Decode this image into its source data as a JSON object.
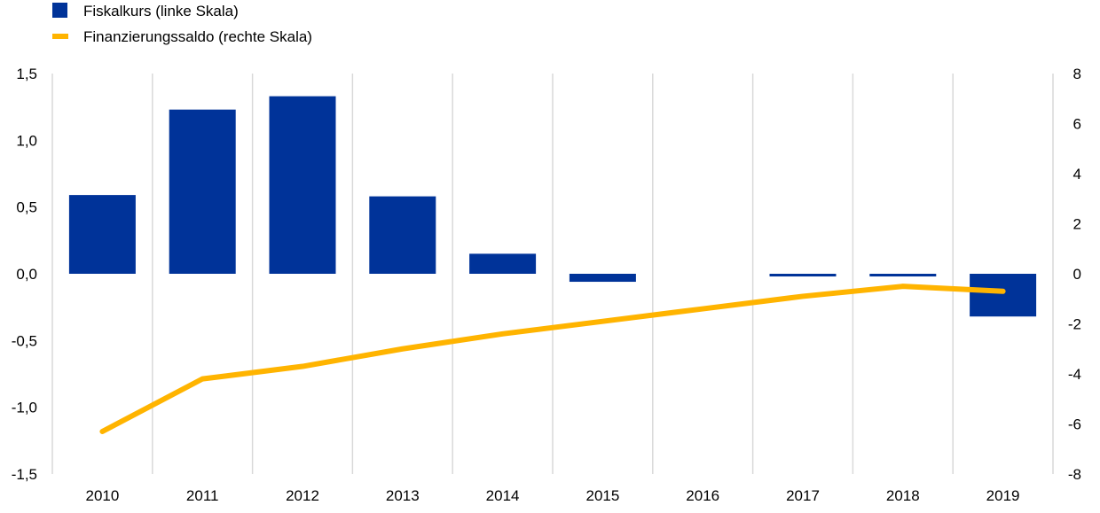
{
  "chart_data": {
    "type": "bar",
    "categories": [
      "2010",
      "2011",
      "2012",
      "2013",
      "2014",
      "2015",
      "2016",
      "2017",
      "2018",
      "2019"
    ],
    "series": [
      {
        "name": "Fiskalkurs (linke Skala)",
        "type": "bar",
        "axis": "left",
        "color": "#003399",
        "values": [
          0.59,
          1.23,
          1.33,
          0.58,
          0.15,
          -0.06,
          0.0,
          -0.02,
          -0.02,
          -0.32
        ]
      },
      {
        "name": "Finanzierungssaldo (rechte Skala)",
        "type": "line",
        "axis": "right",
        "color": "#FFB400",
        "values": [
          -6.3,
          -4.2,
          -3.7,
          -3.0,
          -2.4,
          -1.9,
          -1.4,
          -0.9,
          -0.5,
          -0.7
        ]
      }
    ],
    "left_axis": {
      "ylim": [
        -1.5,
        1.5
      ],
      "ticks": [
        1.5,
        1.0,
        0.5,
        0.0,
        -0.5,
        -1.0,
        -1.5
      ],
      "tick_labels": [
        "1,5",
        "1,0",
        "0,5",
        "0,0",
        "-0,5",
        "-1,0",
        "-1,5"
      ]
    },
    "right_axis": {
      "ylim": [
        -8,
        8
      ],
      "ticks": [
        8,
        6,
        4,
        2,
        0,
        -2,
        -4,
        -6,
        -8
      ],
      "tick_labels": [
        "8",
        "6",
        "4",
        "2",
        "0",
        "-2",
        "-4",
        "-6",
        "-8"
      ]
    },
    "grid": "vertical",
    "legend_position": "top-left"
  }
}
